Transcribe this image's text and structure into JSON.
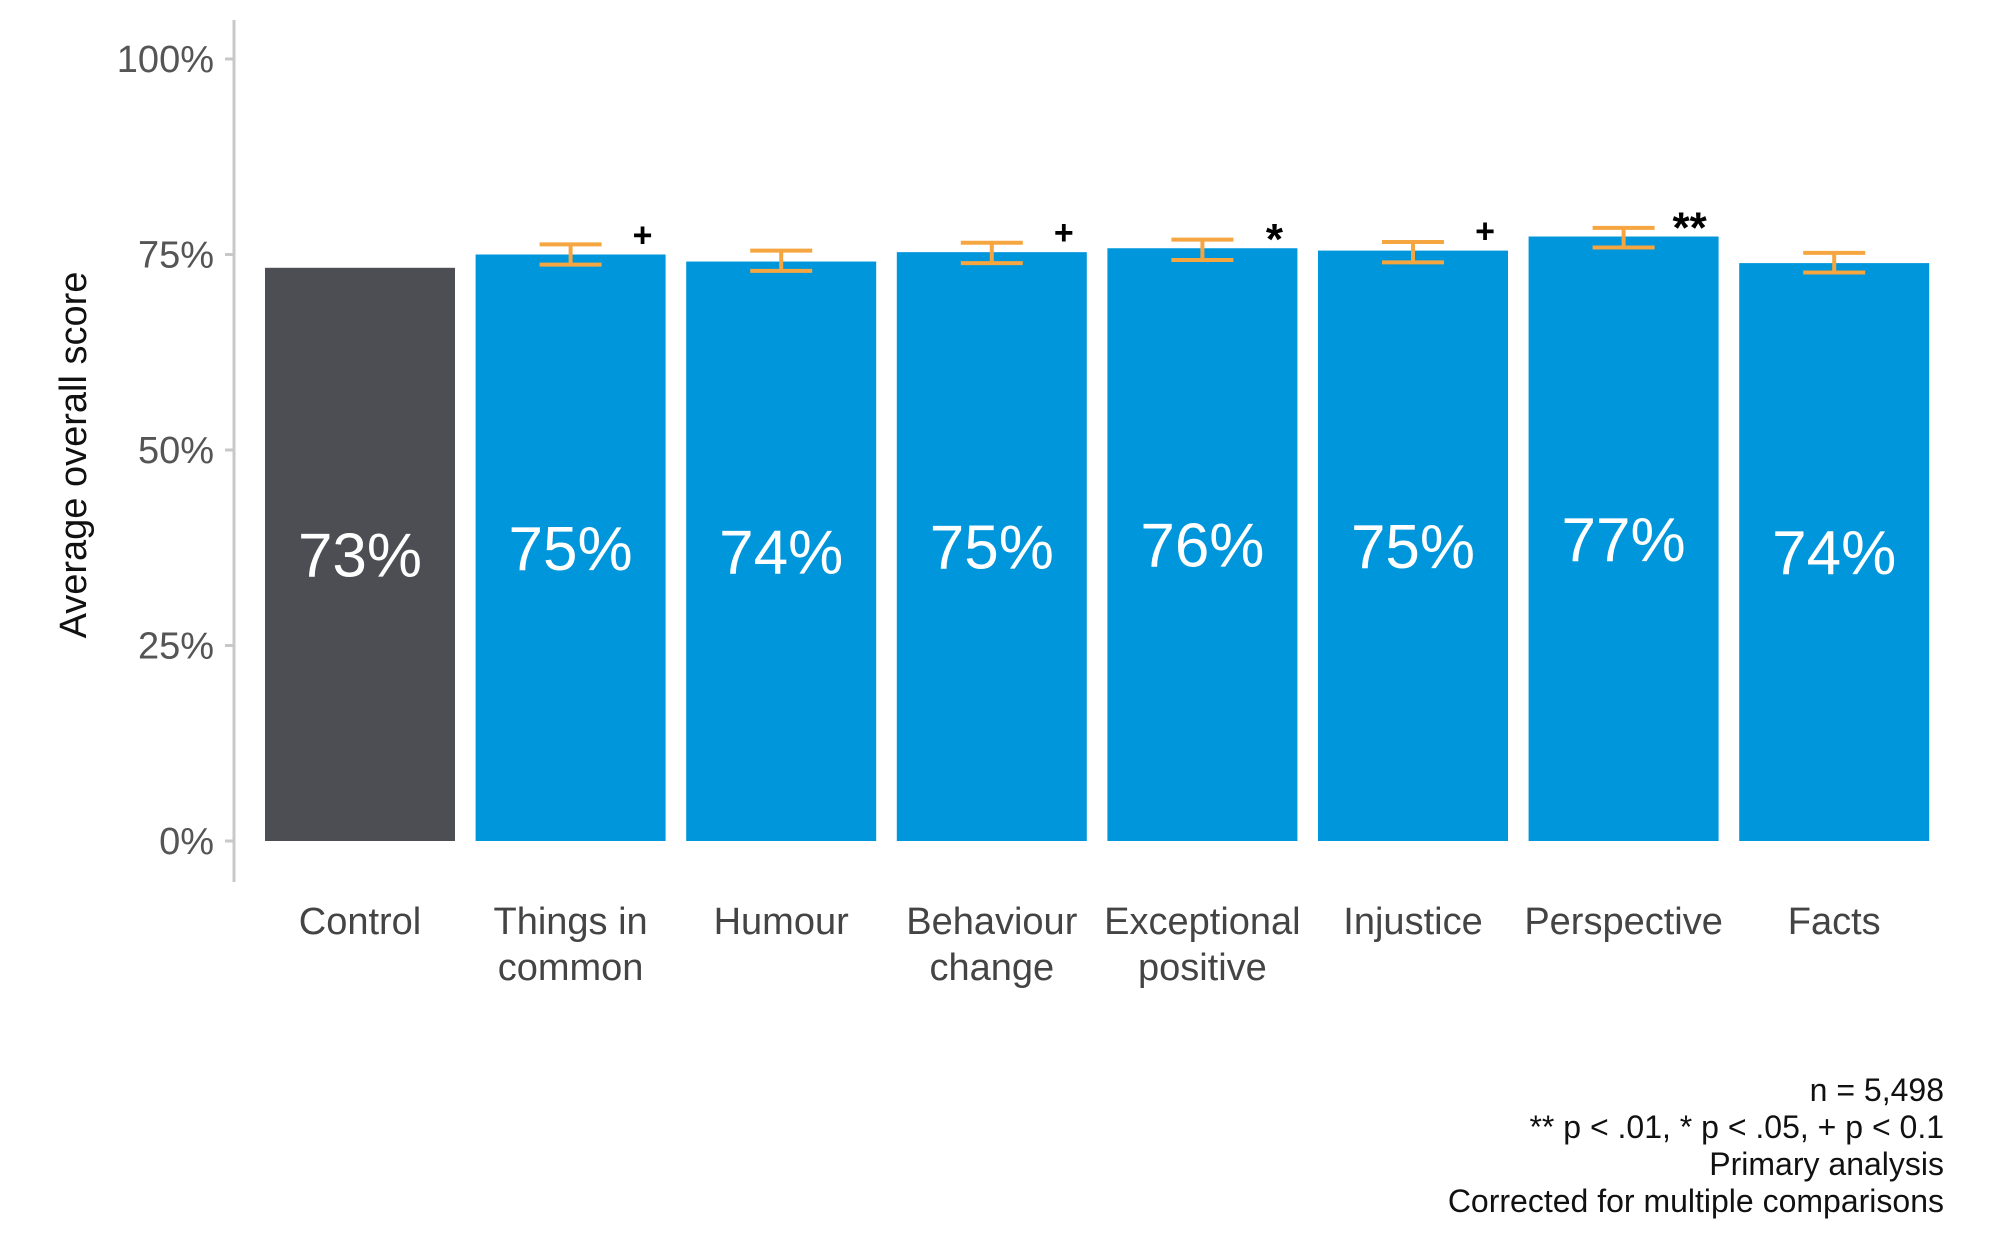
{
  "chart_data": {
    "type": "bar",
    "categories": [
      [
        "Control"
      ],
      [
        "Things in",
        "common"
      ],
      [
        "Humour"
      ],
      [
        "Behaviour",
        "change"
      ],
      [
        "Exceptional",
        "positive"
      ],
      [
        "Injustice"
      ],
      [
        "Perspective"
      ],
      [
        "Facts"
      ]
    ],
    "values": [
      73.3,
      75.0,
      74.1,
      75.3,
      75.8,
      75.5,
      77.3,
      73.9
    ],
    "value_labels": [
      "73%",
      "75%",
      "74%",
      "75%",
      "76%",
      "75%",
      "77%",
      "74%"
    ],
    "error_bars": [
      null,
      [
        73.7,
        76.3
      ],
      [
        72.9,
        75.5
      ],
      [
        73.9,
        76.5
      ],
      [
        74.3,
        76.9
      ],
      [
        74.0,
        76.6
      ],
      [
        75.9,
        78.4
      ],
      [
        72.7,
        75.2
      ]
    ],
    "significance": [
      "",
      "+",
      "",
      "+",
      "*",
      "+",
      "**",
      ""
    ],
    "ylabel": "Average overall score",
    "xlabel": "",
    "ylim": [
      0,
      100
    ],
    "yticks": [
      0,
      25,
      50,
      75,
      100
    ],
    "ytick_labels": [
      "0%",
      "25%",
      "50%",
      "75%",
      "100%"
    ],
    "grid": false,
    "colors": {
      "control": "#4d4e53",
      "treatment": "#0096db",
      "error_bar": "#f5a640",
      "axis": "#c8c8c8",
      "tick_text": "#555555"
    }
  },
  "notes": [
    "n = 5,498",
    "** p < .01, * p < .05, + p < 0.1",
    "Primary analysis",
    "Corrected for multiple comparisons"
  ]
}
